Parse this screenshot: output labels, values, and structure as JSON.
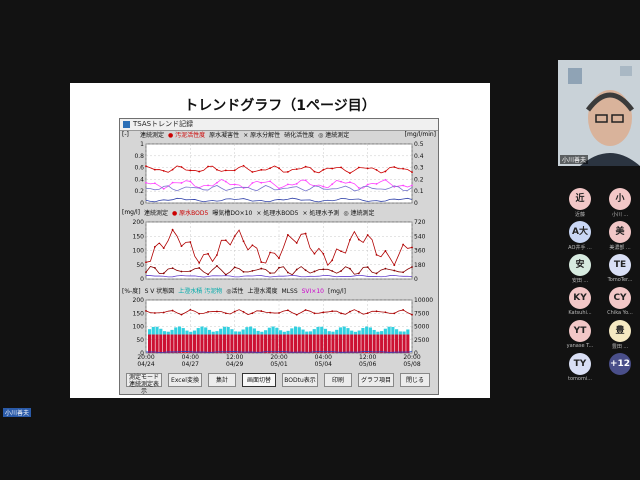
{
  "slide": {
    "title": "トレンドグラフ（1ページ目）"
  },
  "window": {
    "title": "TSASトレンド記録"
  },
  "panel1": {
    "unit_left": "[-]",
    "unit_right": "[mg/l/min]",
    "legend": [
      "連続測定",
      "● 汚泥活性度",
      "原水凝害性",
      "× 原水分解性",
      "×",
      "硝化活性度",
      "◎ 連続測定"
    ],
    "y_left": [
      "1",
      "0.8",
      "0.6",
      "0.4",
      "0.2",
      "0"
    ],
    "y_right": [
      "0.5",
      "0.4",
      "0.3",
      "0.2",
      "0.1",
      "0"
    ],
    "colors": {
      "activity": "#cc0000",
      "toxicity": "#ff44ff",
      "decomp": "#7777cc",
      "nitrif": "#3344aa"
    }
  },
  "panel2": {
    "unit_left": "[mg/l]",
    "unit_right": "[mg/l]",
    "legend": [
      "連続測定",
      "● 原水BOD5",
      "曝気槽DO×10",
      "× 処理水BOD5",
      "× 処理水予測",
      "◎ 連続測定"
    ],
    "y_left": [
      "200",
      "150",
      "100",
      "50",
      "0"
    ],
    "y_right": [
      "720",
      "540",
      "360",
      "180",
      "0"
    ]
  },
  "panel3": {
    "unit_left": "[%-度]",
    "unit_right": "[mg/l]",
    "legend": [
      "S V 状態図",
      "上澄水積 汚泥物",
      "◎活性",
      "上澄水濁度",
      "MLSS",
      "SVI×10",
      "[mg/l]"
    ],
    "y_left": [
      "200",
      "150",
      "100",
      "50",
      "0"
    ],
    "y_right": [
      "10000",
      "7500",
      "5000",
      "2500",
      "0"
    ]
  },
  "x_axis": [
    {
      "time": "20:00",
      "date": "04/24"
    },
    {
      "time": "04:00",
      "date": "04/27"
    },
    {
      "time": "12:00",
      "date": "04/29"
    },
    {
      "time": "20:00",
      "date": "05/01"
    },
    {
      "time": "04:00",
      "date": "05/04"
    },
    {
      "time": "12:00",
      "date": "05/06"
    },
    {
      "time": "20:00",
      "date": "05/08"
    }
  ],
  "buttons": [
    {
      "label": "測定モード\n連続測定表示"
    },
    {
      "label": "Excel変換"
    },
    {
      "label": "集計"
    },
    {
      "label": "画面切替"
    },
    {
      "label": "BODtu表示"
    },
    {
      "label": "印刷"
    },
    {
      "label": "グラフ項目"
    },
    {
      "label": "閉じる"
    }
  ],
  "video": {
    "name": "小川善夫"
  },
  "participants": [
    {
      "initial": "近",
      "name": "近藤",
      "color": "#f2c7c7"
    },
    {
      "initial": "小",
      "name": "小川 ...",
      "color": "#f2c7c7"
    },
    {
      "initial": "A大",
      "name": "AO井手 ...",
      "color": "#c9d7f5"
    },
    {
      "initial": "美",
      "name": "美濃部 ...",
      "color": "#f2c7c7"
    },
    {
      "initial": "安",
      "name": "安田 ...",
      "color": "#d7ebe0"
    },
    {
      "initial": "TE",
      "name": "TomoTer...",
      "color": "#d9dff5"
    },
    {
      "initial": "KY",
      "name": "Katsuhi...",
      "color": "#f2c7c7"
    },
    {
      "initial": "CY",
      "name": "Chika Yo...",
      "color": "#f2c7c7"
    },
    {
      "initial": "YT",
      "name": "yanase T...",
      "color": "#f2c7c7"
    },
    {
      "initial": "豊",
      "name": "豊田 ...",
      "color": "#f5e9c2"
    },
    {
      "initial": "TY",
      "name": "tomomi...",
      "color": "#d9dff5"
    },
    {
      "initial": "+12",
      "name": "",
      "color": "#4a4f8a"
    }
  ],
  "self_label": "小川善夫"
}
